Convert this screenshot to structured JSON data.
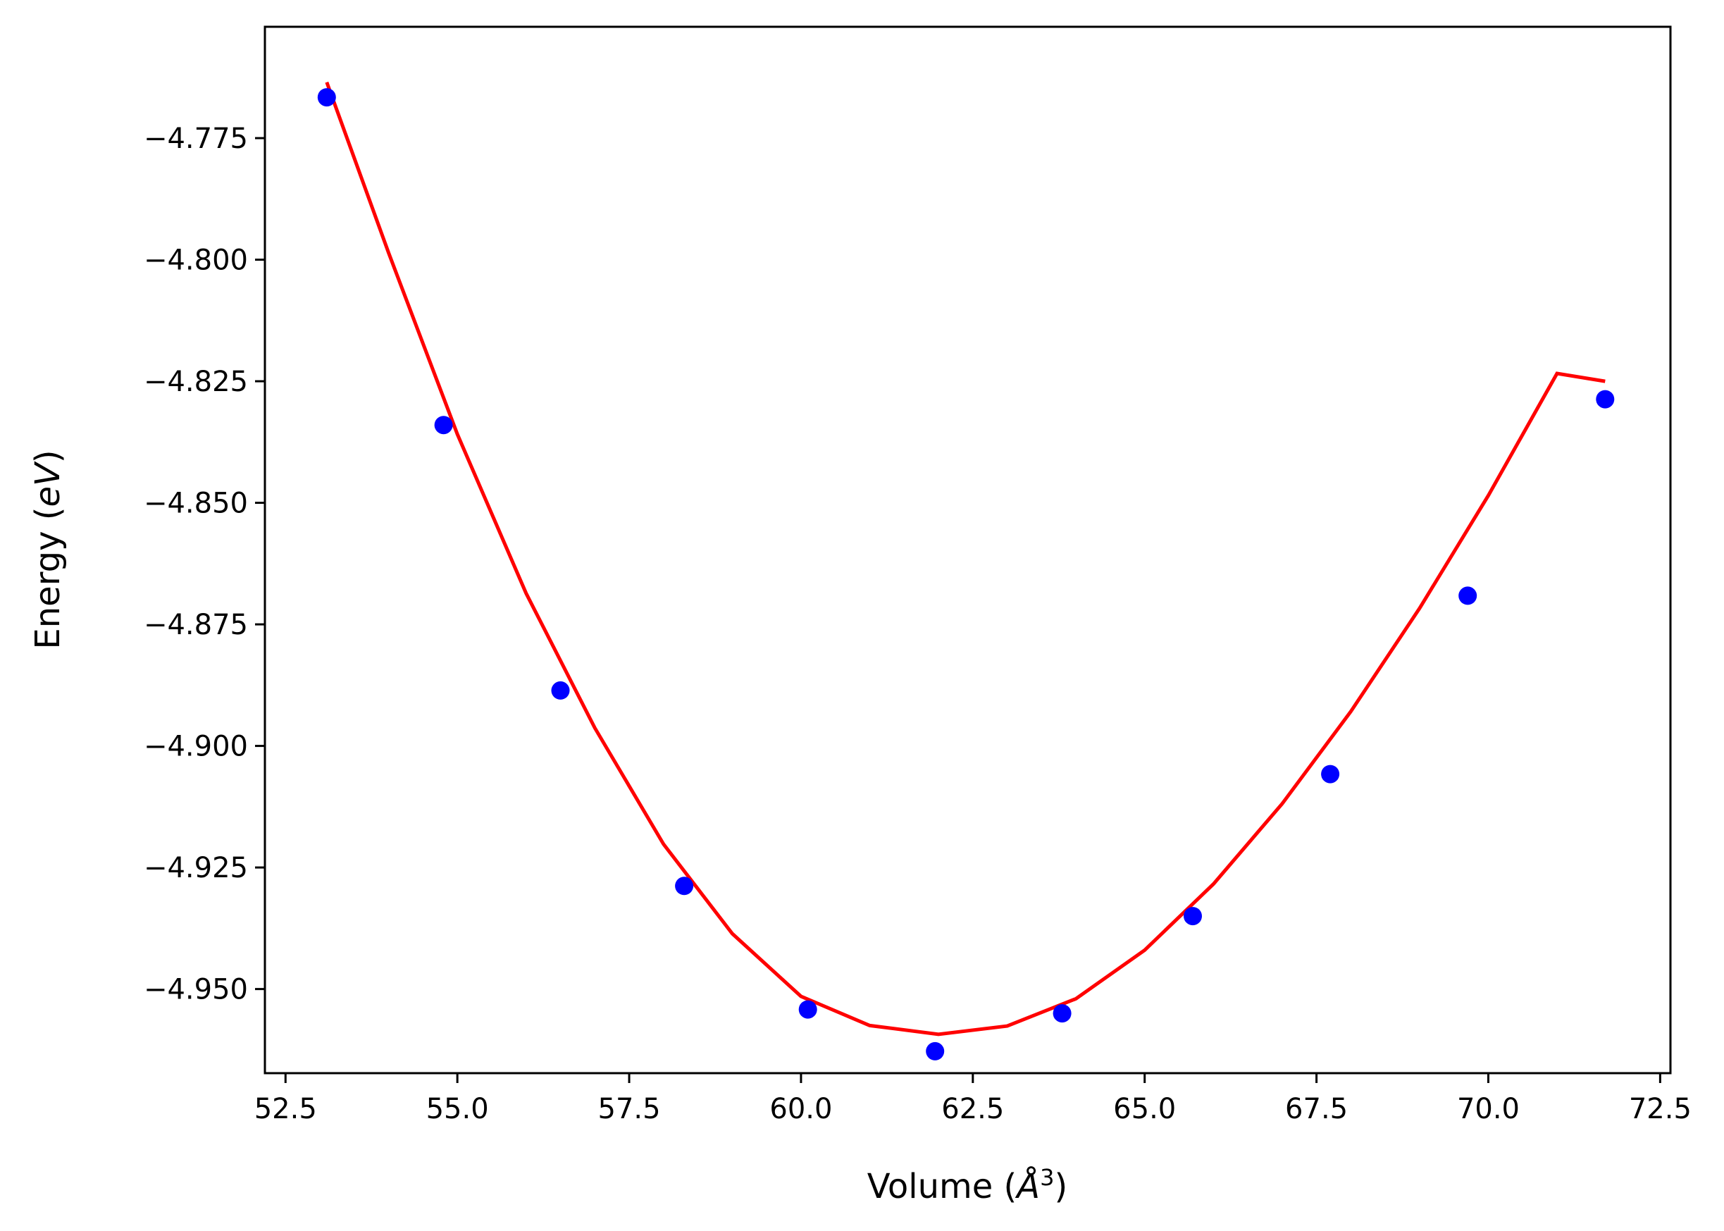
{
  "chart_data": {
    "type": "scatter",
    "title": "",
    "xlabel_prefix": "Volume (",
    "xlabel_unit": "Å",
    "xlabel_exp": "3",
    "xlabel_suffix": ")",
    "ylabel_prefix": "Energy (",
    "ylabel_unit": "eV",
    "ylabel_suffix": ")",
    "xlim": [
      52.2,
      72.65
    ],
    "ylim": [
      -4.9673,
      -4.7521
    ],
    "grid": false,
    "xticks": [
      52.5,
      55.0,
      57.5,
      60.0,
      62.5,
      65.0,
      67.5,
      70.0,
      72.5
    ],
    "xtick_labels": [
      "52.5",
      "55.0",
      "57.5",
      "60.0",
      "62.5",
      "65.0",
      "67.5",
      "70.0",
      "72.5"
    ],
    "yticks": [
      -4.775,
      -4.8,
      -4.825,
      -4.85,
      -4.875,
      -4.9,
      -4.925,
      -4.95
    ],
    "ytick_labels": [
      "−4.775",
      "−4.800",
      "−4.825",
      "−4.850",
      "−4.875",
      "−4.900",
      "−4.925",
      "−4.950"
    ],
    "series": [
      {
        "type": "scatter",
        "color": "#0000ff",
        "x": [
          53.1,
          54.8,
          56.5,
          58.3,
          60.1,
          61.95,
          63.8,
          65.7,
          67.7,
          69.7,
          71.7
        ],
        "y": [
          -4.7666,
          -4.834,
          -4.8886,
          -4.9288,
          -4.9542,
          -4.9628,
          -4.955,
          -4.935,
          -4.9058,
          -4.8691,
          -4.8287
        ]
      },
      {
        "type": "line",
        "color": "#ff0000",
        "x": [
          53.1,
          54.0,
          55.0,
          56.0,
          57.0,
          58.0,
          59.0,
          60.0,
          61.0,
          62.0,
          63.0,
          64.0,
          65.0,
          66.0,
          67.0,
          68.0,
          69.0,
          70.0,
          71.0,
          71.7
        ],
        "y": [
          -4.7635,
          -4.7986,
          -4.8359,
          -4.8686,
          -4.8963,
          -4.9202,
          -4.9386,
          -4.9515,
          -4.9575,
          -4.9593,
          -4.9576,
          -4.952,
          -4.942,
          -4.9284,
          -4.9119,
          -4.8929,
          -4.8717,
          -4.8485,
          -4.8234,
          -4.825
        ]
      }
    ]
  }
}
